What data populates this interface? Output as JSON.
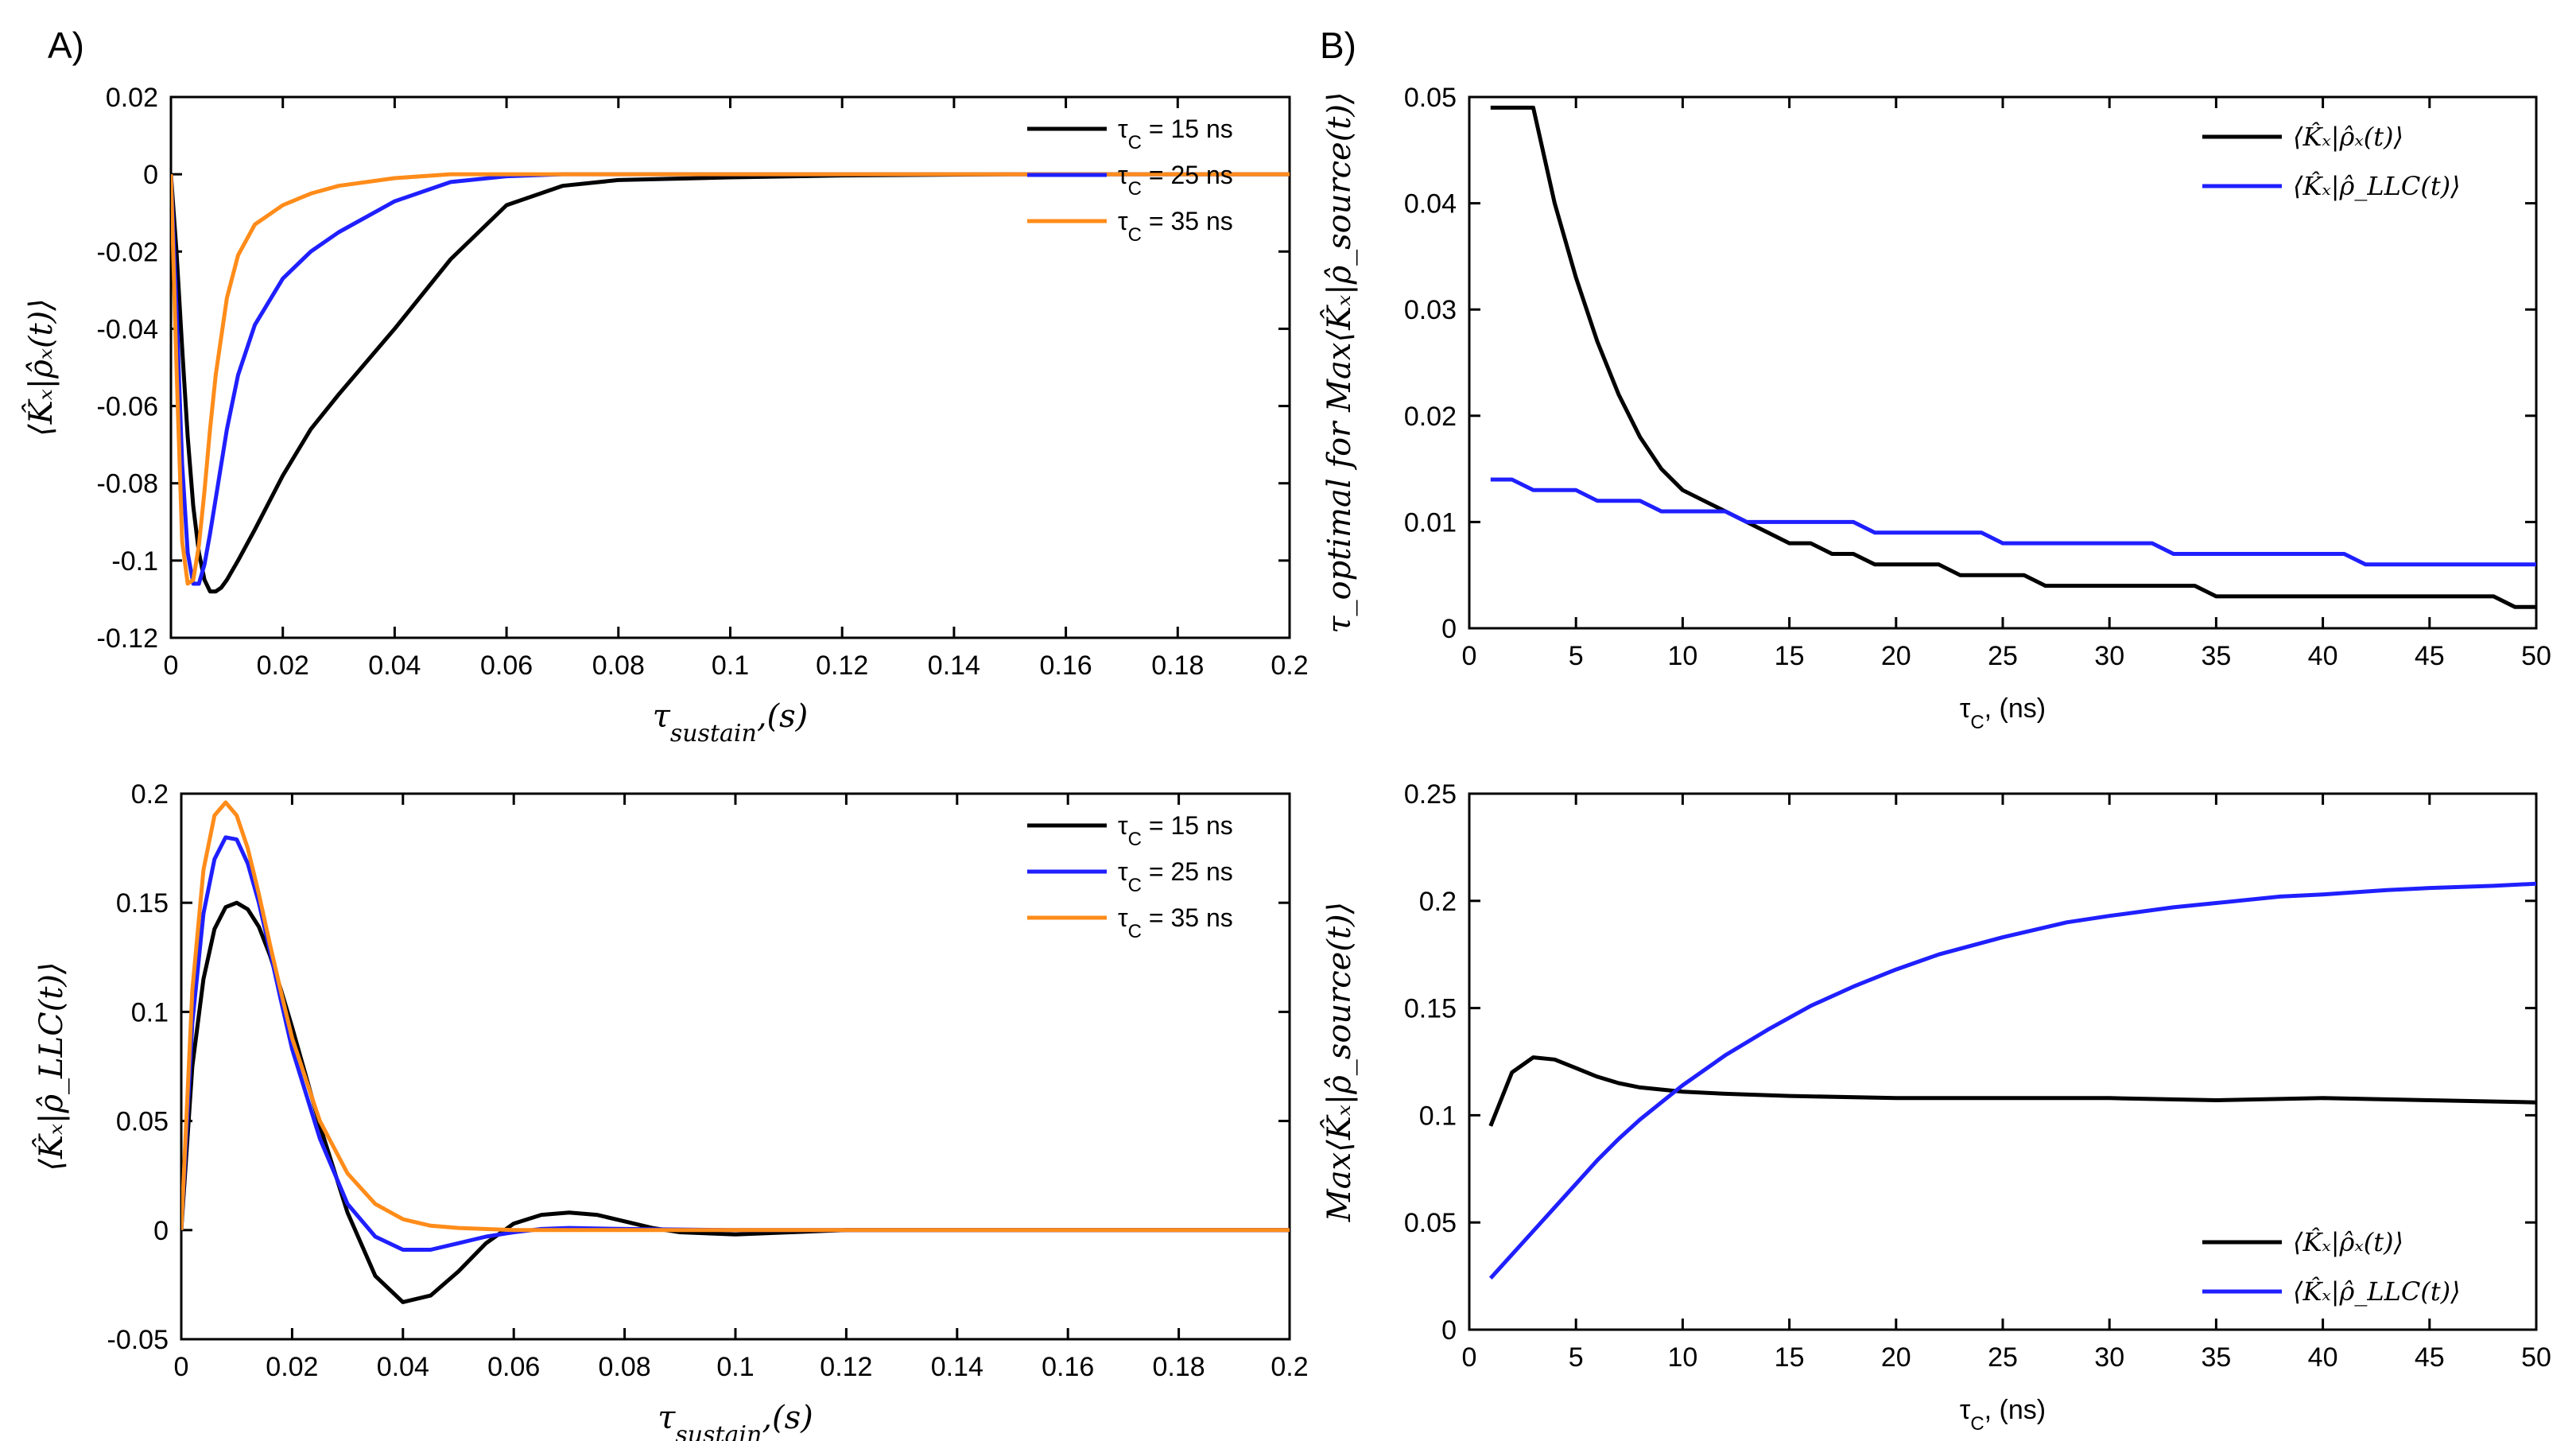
{
  "figure": {
    "label_a": "A)",
    "label_b": "B)"
  },
  "colors": {
    "tc15": "#000000",
    "tc25": "#1f1fff",
    "tc35": "#ff8c1a",
    "kx_rho_x": "#000000",
    "kx_rho_llc": "#1f1fff"
  },
  "legend_tc": [
    {
      "name": "τ",
      "sub": "C",
      "text": " = 15 ns"
    },
    {
      "name": "τ",
      "sub": "C",
      "text": " = 25 ns"
    },
    {
      "name": "τ",
      "sub": "C",
      "text": " = 35 ns"
    }
  ],
  "legend_kx": [
    "⟨K̂ₓ|ρ̂ₓ(t)⟩",
    "⟨K̂ₓ|ρ̂_LLC(t)⟩"
  ],
  "chart_data": [
    {
      "type": "line",
      "id": "a_top",
      "ylabel": "⟨K̂ₓ|ρ̂ₓ(t)⟩",
      "xlabel": "τ_sustain,(s)",
      "xlim": [
        0,
        0.2
      ],
      "ylim": [
        -0.12,
        0.02
      ],
      "xticks": [
        "0",
        "0.02",
        "0.04",
        "0.06",
        "0.08",
        "0.1",
        "0.12",
        "0.14",
        "0.16",
        "0.18",
        "0.2"
      ],
      "yticks": [
        "0.02",
        "0",
        "-0.02",
        "-0.04",
        "-0.06",
        "-0.08",
        "-0.1",
        "-0.12"
      ],
      "legend_position": "top-right",
      "series": [
        {
          "name": "τC = 15 ns",
          "x": [
            0,
            0.001,
            0.002,
            0.003,
            0.004,
            0.005,
            0.006,
            0.007,
            0.008,
            0.009,
            0.01,
            0.012,
            0.015,
            0.02,
            0.025,
            0.03,
            0.04,
            0.05,
            0.06,
            0.07,
            0.08,
            0.1,
            0.12,
            0.15,
            0.2
          ],
          "y": [
            0,
            -0.02,
            -0.045,
            -0.068,
            -0.086,
            -0.098,
            -0.105,
            -0.108,
            -0.108,
            -0.107,
            -0.105,
            -0.1,
            -0.092,
            -0.078,
            -0.066,
            -0.057,
            -0.04,
            -0.022,
            -0.008,
            -0.003,
            -0.0015,
            -0.0008,
            -0.0003,
            0,
            0
          ]
        },
        {
          "name": "τC = 25 ns",
          "x": [
            0,
            0.001,
            0.002,
            0.003,
            0.004,
            0.005,
            0.006,
            0.007,
            0.008,
            0.01,
            0.012,
            0.015,
            0.02,
            0.025,
            0.03,
            0.04,
            0.05,
            0.06,
            0.07,
            0.08,
            0.1,
            0.15,
            0.2
          ],
          "y": [
            0,
            -0.035,
            -0.075,
            -0.098,
            -0.106,
            -0.106,
            -0.101,
            -0.093,
            -0.084,
            -0.066,
            -0.052,
            -0.039,
            -0.027,
            -0.02,
            -0.015,
            -0.007,
            -0.002,
            -0.0005,
            0,
            0,
            0,
            0,
            0
          ]
        },
        {
          "name": "τC = 35 ns",
          "x": [
            0,
            0.001,
            0.002,
            0.003,
            0.004,
            0.005,
            0.006,
            0.007,
            0.008,
            0.01,
            0.012,
            0.015,
            0.02,
            0.025,
            0.03,
            0.04,
            0.05,
            0.06,
            0.08,
            0.1,
            0.15,
            0.2
          ],
          "y": [
            0,
            -0.05,
            -0.095,
            -0.106,
            -0.105,
            -0.096,
            -0.082,
            -0.066,
            -0.052,
            -0.032,
            -0.021,
            -0.013,
            -0.008,
            -0.005,
            -0.003,
            -0.001,
            0,
            0,
            0,
            0,
            0,
            0
          ]
        }
      ]
    },
    {
      "type": "line",
      "id": "a_bottom",
      "ylabel": "⟨K̂ₓ|ρ̂_LLC(t)⟩",
      "xlabel": "τ_sustain,(s)",
      "xlim": [
        0,
        0.2
      ],
      "ylim": [
        -0.05,
        0.2
      ],
      "xticks": [
        "0",
        "0.02",
        "0.04",
        "0.06",
        "0.08",
        "0.1",
        "0.12",
        "0.14",
        "0.16",
        "0.18",
        "0.2"
      ],
      "yticks": [
        "0.2",
        "0.15",
        "0.1",
        "0.05",
        "0",
        "-0.05"
      ],
      "legend_position": "top-right",
      "series": [
        {
          "name": "τC = 15 ns",
          "x": [
            0,
            0.002,
            0.004,
            0.006,
            0.008,
            0.01,
            0.012,
            0.014,
            0.016,
            0.018,
            0.02,
            0.025,
            0.03,
            0.035,
            0.04,
            0.045,
            0.05,
            0.055,
            0.06,
            0.065,
            0.07,
            0.075,
            0.08,
            0.085,
            0.09,
            0.1,
            0.11,
            0.12,
            0.14,
            0.16,
            0.2
          ],
          "y": [
            0,
            0.075,
            0.115,
            0.138,
            0.148,
            0.15,
            0.147,
            0.139,
            0.126,
            0.11,
            0.093,
            0.048,
            0.008,
            -0.021,
            -0.033,
            -0.03,
            -0.019,
            -0.006,
            0.003,
            0.007,
            0.008,
            0.007,
            0.004,
            0.001,
            -0.001,
            -0.002,
            -0.001,
            0,
            0,
            0,
            0
          ]
        },
        {
          "name": "τC = 25 ns",
          "x": [
            0,
            0.002,
            0.004,
            0.006,
            0.008,
            0.01,
            0.012,
            0.014,
            0.016,
            0.018,
            0.02,
            0.025,
            0.03,
            0.035,
            0.04,
            0.045,
            0.05,
            0.055,
            0.06,
            0.065,
            0.07,
            0.08,
            0.1,
            0.14,
            0.2
          ],
          "y": [
            0,
            0.095,
            0.145,
            0.17,
            0.18,
            0.179,
            0.168,
            0.15,
            0.128,
            0.105,
            0.083,
            0.042,
            0.012,
            -0.003,
            -0.009,
            -0.009,
            -0.006,
            -0.003,
            -0.001,
            0.0005,
            0.001,
            0.0005,
            0,
            0,
            0
          ]
        },
        {
          "name": "τC = 35 ns",
          "x": [
            0,
            0.002,
            0.004,
            0.006,
            0.008,
            0.01,
            0.012,
            0.014,
            0.016,
            0.018,
            0.02,
            0.025,
            0.03,
            0.035,
            0.04,
            0.045,
            0.05,
            0.06,
            0.07,
            0.08,
            0.1,
            0.14,
            0.2
          ],
          "y": [
            0,
            0.11,
            0.165,
            0.19,
            0.196,
            0.19,
            0.175,
            0.154,
            0.131,
            0.109,
            0.088,
            0.05,
            0.026,
            0.012,
            0.005,
            0.002,
            0.001,
            0,
            0,
            0,
            0,
            0,
            0
          ]
        }
      ]
    },
    {
      "type": "line",
      "id": "b_top",
      "ylabel": "τ_optimal for Max⟨K̂ₓ|ρ̂_source(t)⟩",
      "xlabel": "τC, (ns)",
      "xlim": [
        0,
        50
      ],
      "ylim": [
        0,
        0.05
      ],
      "xticks": [
        "0",
        "5",
        "10",
        "15",
        "20",
        "25",
        "30",
        "35",
        "40",
        "45",
        "50"
      ],
      "yticks": [
        "0.05",
        "0.04",
        "0.03",
        "0.02",
        "0.01",
        "0"
      ],
      "legend_position": "top-right",
      "series": [
        {
          "name": "⟨K̂ₓ|ρ̂ₓ(t)⟩",
          "x": [
            1,
            3,
            4,
            5,
            6,
            7,
            8,
            9,
            10,
            11,
            12,
            13,
            14,
            15,
            16,
            17,
            18,
            19,
            20,
            21,
            22,
            23,
            24,
            25,
            26,
            27,
            28,
            29,
            30,
            31,
            32,
            33,
            34,
            35,
            36,
            40,
            45,
            48,
            49,
            50
          ],
          "y": [
            0.049,
            0.049,
            0.04,
            0.033,
            0.027,
            0.022,
            0.018,
            0.015,
            0.013,
            0.012,
            0.011,
            0.01,
            0.009,
            0.008,
            0.008,
            0.007,
            0.007,
            0.006,
            0.006,
            0.006,
            0.006,
            0.005,
            0.005,
            0.005,
            0.005,
            0.004,
            0.004,
            0.004,
            0.004,
            0.004,
            0.004,
            0.004,
            0.004,
            0.003,
            0.003,
            0.003,
            0.003,
            0.003,
            0.002,
            0.002
          ]
        },
        {
          "name": "⟨K̂ₓ|ρ̂_LLC(t)⟩",
          "x": [
            1,
            2,
            3,
            4,
            5,
            6,
            7,
            8,
            9,
            10,
            11,
            12,
            13,
            14,
            15,
            16,
            17,
            18,
            19,
            20,
            21,
            22,
            23,
            24,
            25,
            26,
            27,
            28,
            29,
            30,
            31,
            32,
            33,
            34,
            35,
            36,
            37,
            38,
            39,
            40,
            41,
            42,
            43,
            44,
            45,
            46,
            47,
            48,
            49,
            50
          ],
          "y": [
            0.014,
            0.014,
            0.013,
            0.013,
            0.013,
            0.012,
            0.012,
            0.012,
            0.011,
            0.011,
            0.011,
            0.011,
            0.01,
            0.01,
            0.01,
            0.01,
            0.01,
            0.01,
            0.009,
            0.009,
            0.009,
            0.009,
            0.009,
            0.009,
            0.008,
            0.008,
            0.008,
            0.008,
            0.008,
            0.008,
            0.008,
            0.008,
            0.007,
            0.007,
            0.007,
            0.007,
            0.007,
            0.007,
            0.007,
            0.007,
            0.007,
            0.006,
            0.006,
            0.006,
            0.006,
            0.006,
            0.006,
            0.006,
            0.006,
            0.006
          ]
        }
      ]
    },
    {
      "type": "line",
      "id": "b_bottom",
      "ylabel": "Max⟨K̂ₓ|ρ̂_source(t)⟩",
      "xlabel": "τC, (ns)",
      "xlim": [
        0,
        50
      ],
      "ylim": [
        0,
        0.25
      ],
      "xticks": [
        "0",
        "5",
        "10",
        "15",
        "20",
        "25",
        "30",
        "35",
        "40",
        "45",
        "50"
      ],
      "yticks": [
        "0.25",
        "0.2",
        "0.15",
        "0.1",
        "0.05",
        "0"
      ],
      "legend_position": "bottom-right",
      "series": [
        {
          "name": "⟨K̂ₓ|ρ̂ₓ(t)⟩",
          "x": [
            1,
            2,
            3,
            4,
            5,
            6,
            7,
            8,
            10,
            12,
            15,
            20,
            25,
            30,
            35,
            40,
            45,
            50
          ],
          "y": [
            0.095,
            0.12,
            0.127,
            0.126,
            0.122,
            0.118,
            0.115,
            0.113,
            0.111,
            0.11,
            0.109,
            0.108,
            0.108,
            0.108,
            0.107,
            0.108,
            0.107,
            0.106
          ]
        },
        {
          "name": "⟨K̂ₓ|ρ̂_LLC(t)⟩",
          "x": [
            1,
            2,
            3,
            4,
            5,
            6,
            7,
            8,
            9,
            10,
            12,
            14,
            16,
            18,
            20,
            22,
            25,
            28,
            30,
            33,
            35,
            38,
            40,
            43,
            45,
            48,
            50
          ],
          "y": [
            0.024,
            0.035,
            0.046,
            0.057,
            0.068,
            0.079,
            0.089,
            0.098,
            0.106,
            0.114,
            0.128,
            0.14,
            0.151,
            0.16,
            0.168,
            0.175,
            0.183,
            0.19,
            0.193,
            0.197,
            0.199,
            0.202,
            0.203,
            0.205,
            0.206,
            0.207,
            0.208
          ]
        }
      ]
    }
  ]
}
